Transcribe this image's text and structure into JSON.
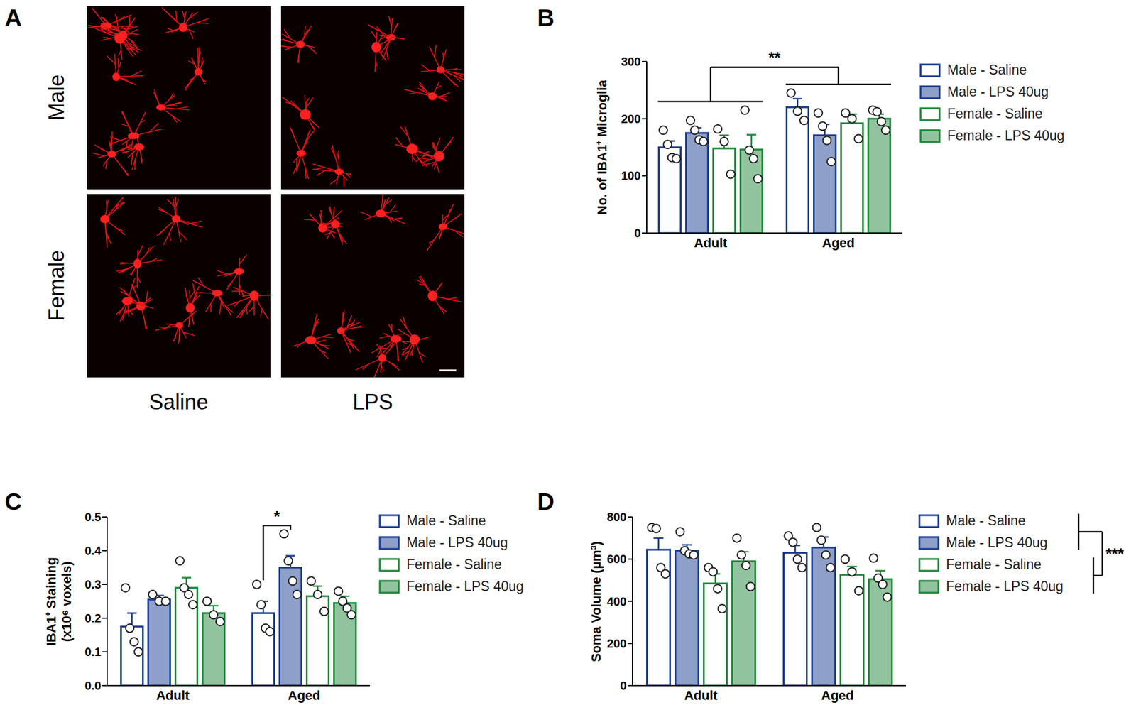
{
  "image_panel": {
    "panel_label": "A",
    "rows": [
      "Male",
      "Female"
    ],
    "columns": [
      "Saline",
      "LPS"
    ]
  },
  "chart_data": [
    {
      "panel_label": "B",
      "type": "bar",
      "categories": [
        "Adult",
        "Aged"
      ],
      "y_label": "No. of IBA1⁺ Microglia",
      "ylim": [
        0,
        300
      ],
      "yticks": [
        0,
        100,
        200,
        300
      ],
      "series": [
        {
          "name": "Male - Saline",
          "color": "#1c3f94",
          "marker": "hollow",
          "values": [
            150,
            220
          ],
          "errors": [
            11,
            15
          ],
          "points": [
            [
              180,
              155,
              132,
              130
            ],
            [
              245,
              213,
              197
            ]
          ]
        },
        {
          "name": "Male - LPS 40ug",
          "color": "#1c3f94",
          "marker": "filled",
          "values": [
            175,
            171
          ],
          "errors": [
            9,
            19
          ],
          "points": [
            [
              197,
              180,
              163,
              160
            ],
            [
              210,
              187,
              162,
              125
            ]
          ]
        },
        {
          "name": "Female - Saline",
          "color": "#23893c",
          "marker": "hollow",
          "values": [
            148,
            192
          ],
          "errors": [
            23,
            16
          ],
          "points": [
            [
              182,
              160,
              103
            ],
            [
              210,
              200,
              165
            ]
          ]
        },
        {
          "name": "Female - LPS 40ug",
          "color": "#23893c",
          "marker": "filled",
          "values": [
            146,
            200
          ],
          "errors": [
            26,
            8
          ],
          "points": [
            [
              215,
              145,
              130,
              95
            ],
            [
              215,
              212,
              195,
              180
            ]
          ]
        }
      ],
      "annotations": [
        {
          "text": "**",
          "from": "Adult",
          "to": "Aged"
        }
      ]
    },
    {
      "panel_label": "C",
      "type": "bar",
      "categories": [
        "Adult",
        "Aged"
      ],
      "y_label": [
        "IBA1⁺ Staining",
        "(x10⁶ voxels)"
      ],
      "ylim": [
        0,
        0.5
      ],
      "yticks": [
        {
          "value": 0,
          "label": "0.0"
        },
        0.1,
        0.2,
        0.3,
        0.4,
        0.5
      ],
      "series": [
        {
          "name": "Male - Saline",
          "color": "#1c3f94",
          "marker": "hollow",
          "values": [
            0.175,
            0.215
          ],
          "errors": [
            0.04,
            0.035
          ],
          "points": [
            [
              0.29,
              0.17,
              0.13,
              0.1
            ],
            [
              0.3,
              0.24,
              0.17,
              0.16
            ]
          ]
        },
        {
          "name": "Male - LPS 40ug",
          "color": "#1c3f94",
          "marker": "filled",
          "values": [
            0.255,
            0.35
          ],
          "errors": [
            0.012,
            0.035
          ],
          "points": [
            [
              0.27,
              0.25,
              0.25
            ],
            [
              0.45,
              0.37,
              0.31,
              0.27
            ]
          ]
        },
        {
          "name": "Female - Saline",
          "color": "#23893c",
          "marker": "hollow",
          "values": [
            0.29,
            0.265
          ],
          "errors": [
            0.03,
            0.03
          ],
          "points": [
            [
              0.37,
              0.29,
              0.27,
              0.24
            ],
            [
              0.31,
              0.27,
              0.22
            ]
          ]
        },
        {
          "name": "Female - LPS 40ug",
          "color": "#23893c",
          "marker": "filled",
          "values": [
            0.215,
            0.245
          ],
          "errors": [
            0.022,
            0.02
          ],
          "points": [
            [
              0.25,
              0.21,
              0.19
            ],
            [
              0.28,
              0.25,
              0.23,
              0.21
            ]
          ]
        }
      ],
      "annotations": [
        {
          "text": "*",
          "category": "Aged",
          "from": "Male - Saline",
          "to": "Male - LPS 40ug"
        }
      ]
    },
    {
      "panel_label": "D",
      "type": "bar",
      "categories": [
        "Adult",
        "Aged"
      ],
      "y_label": "Soma Volume (µm³)",
      "ylim": [
        0,
        800
      ],
      "yticks": [
        0,
        200,
        400,
        600,
        800
      ],
      "series": [
        {
          "name": "Male - Saline",
          "color": "#1c3f94",
          "marker": "hollow",
          "values": [
            645,
            630
          ],
          "errors": [
            55,
            35
          ],
          "points": [
            [
              750,
              745,
              560,
              530
            ],
            [
              710,
              680,
              600,
              560
            ]
          ]
        },
        {
          "name": "Male - LPS 40ug",
          "color": "#1c3f94",
          "marker": "filled",
          "values": [
            640,
            655
          ],
          "errors": [
            28,
            50
          ],
          "points": [
            [
              730,
              640,
              625,
              620
            ],
            [
              750,
              690,
              620,
              560
            ]
          ]
        },
        {
          "name": "Female - Saline",
          "color": "#23893c",
          "marker": "hollow",
          "values": [
            485,
            525
          ],
          "errors": [
            45,
            40
          ],
          "points": [
            [
              560,
              540,
              460,
              365
            ],
            [
              600,
              540,
              450
            ]
          ]
        },
        {
          "name": "Female - LPS 40ug",
          "color": "#23893c",
          "marker": "filled",
          "values": [
            590,
            505
          ],
          "errors": [
            45,
            40
          ],
          "points": [
            [
              700,
              620,
              570,
              470
            ],
            [
              605,
              510,
              480,
              420
            ]
          ]
        }
      ],
      "annotations": [
        {
          "text": "***",
          "from": [
            "Male - Saline",
            "Male - LPS 40ug"
          ],
          "to": [
            "Female - Saline",
            "Female - LPS 40ug"
          ]
        }
      ]
    }
  ]
}
